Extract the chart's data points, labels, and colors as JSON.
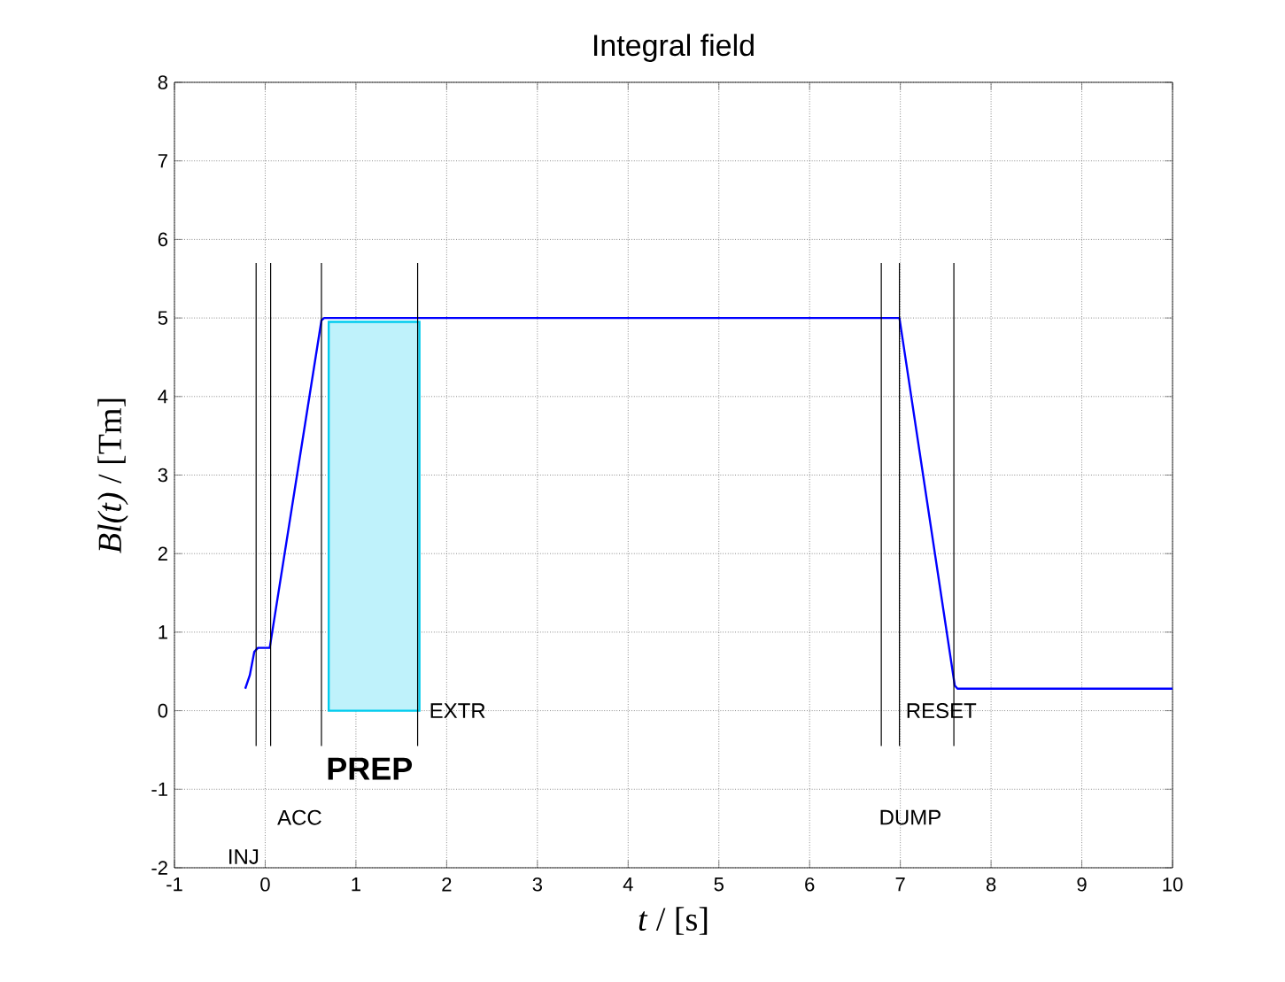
{
  "chart_data": {
    "type": "line",
    "title": "Integral field",
    "xlabel": "*t* / [s]",
    "ylabel": "*Bl(t)* / [Tm]",
    "xlim": [
      -1,
      10
    ],
    "xticks": [
      -1,
      0,
      1,
      2,
      3,
      4,
      5,
      6,
      7,
      8,
      9,
      10
    ],
    "ylim": [
      -2,
      8
    ],
    "yticks": [
      -2,
      -1,
      0,
      1,
      2,
      3,
      4,
      5,
      6,
      7,
      8
    ],
    "grid": true,
    "marker": "none",
    "line_style": "solid",
    "series": [
      {
        "color": "#0000ff",
        "x": [
          -0.22,
          -0.17,
          -0.12,
          -0.08,
          0.05,
          0.62,
          0.65,
          6.99,
          7.6,
          7.63,
          10
        ],
        "values": [
          0.28,
          0.45,
          0.75,
          0.8,
          0.8,
          4.97,
          5,
          5,
          0.32,
          0.28,
          0.28
        ]
      },
      {
        "type": "area",
        "color": "#00ccee",
        "x": [
          0.7,
          1.7
        ],
        "values": [
          4.95,
          4.95
        ]
      },
      {
        "color": "#000000",
        "x": [
          -0.1,
          -0.1
        ],
        "values": [
          5.7,
          -0.45
        ]
      },
      {
        "color": "#000000",
        "x": [
          0.06,
          0.06
        ],
        "values": [
          5.7,
          -0.45
        ]
      },
      {
        "color": "#000000",
        "x": [
          0.62,
          0.62
        ],
        "values": [
          5.7,
          -0.45
        ]
      },
      {
        "color": "#000000",
        "x": [
          1.68,
          1.68
        ],
        "values": [
          5.7,
          -0.45
        ]
      },
      {
        "color": "#000000",
        "x": [
          6.79,
          6.79
        ],
        "values": [
          5.7,
          -0.45
        ]
      },
      {
        "color": "#000000",
        "x": [
          6.99,
          6.99
        ],
        "values": [
          5.7,
          -0.45
        ]
      },
      {
        "color": "#000000",
        "x": [
          7.59,
          7.59
        ],
        "values": [
          5.7,
          -0.45
        ]
      }
    ],
    "annotations": [
      "INJ",
      "ACC",
      "PREP",
      "EXTR",
      "RESET",
      "DUMP"
    ]
  }
}
